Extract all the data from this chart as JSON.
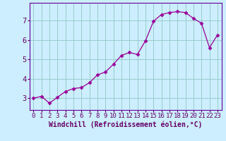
{
  "x": [
    0,
    1,
    2,
    3,
    4,
    5,
    6,
    7,
    8,
    9,
    10,
    11,
    12,
    13,
    14,
    15,
    16,
    17,
    18,
    19,
    20,
    21,
    22,
    23
  ],
  "y": [
    3.0,
    3.1,
    2.75,
    3.05,
    3.35,
    3.5,
    3.55,
    3.8,
    4.2,
    4.35,
    4.75,
    5.2,
    5.35,
    5.25,
    5.95,
    6.95,
    7.3,
    7.4,
    7.45,
    7.4,
    7.1,
    6.85,
    5.6,
    6.25
  ],
  "line_color": "#990099",
  "marker": "D",
  "marker_size": 2.5,
  "bg_color": "#cceeff",
  "grid_color": "#99cccc",
  "axis_color": "#660099",
  "xlabel": "Windchill (Refroidissement éolien,°C)",
  "xlabel_color": "#660066",
  "tick_color": "#660066",
  "xlabel_fontsize": 7,
  "tick_fontsize": 6.5,
  "ylim": [
    2.4,
    7.9
  ],
  "xlim": [
    -0.5,
    23.5
  ],
  "yticks": [
    3,
    4,
    5,
    6,
    7
  ],
  "xticks": [
    0,
    1,
    2,
    3,
    4,
    5,
    6,
    7,
    8,
    9,
    10,
    11,
    12,
    13,
    14,
    15,
    16,
    17,
    18,
    19,
    20,
    21,
    22,
    23
  ]
}
